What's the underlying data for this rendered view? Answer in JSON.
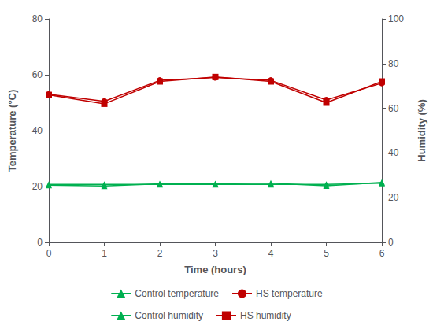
{
  "chart_data": {
    "type": "line",
    "xlabel": "Time (hours)",
    "ylabel": "Temperature (°C)",
    "y2label": "Humidity (%)",
    "x": [
      0,
      1,
      2,
      3,
      4,
      5,
      6
    ],
    "xlim": [
      0,
      6
    ],
    "xticks": [
      0,
      1,
      2,
      3,
      4,
      5,
      6
    ],
    "ylim": [
      0,
      80
    ],
    "yticks": [
      0,
      20,
      40,
      60,
      80
    ],
    "y2lim": [
      0,
      100
    ],
    "y2ticks": [
      0,
      20,
      40,
      60,
      80,
      100
    ],
    "grid": false,
    "legend": "bottom",
    "series": [
      {
        "name": "Control temperature",
        "color": "#00b050",
        "marker": "triangle",
        "line_style": "solid",
        "values": [
          20.5,
          20.2,
          21.0,
          21.0,
          21.2,
          20.3,
          21.5
        ]
      },
      {
        "name": "HS temperature",
        "color": "#c00000",
        "marker": "circle",
        "line_style": "solid",
        "values": [
          53.0,
          50.5,
          58.0,
          59.0,
          58.0,
          51.0,
          57.0
        ]
      },
      {
        "name": "Control humidity",
        "color": "#00b050",
        "marker": "triangle",
        "line_style": "solid",
        "axis": "y2",
        "values": [
          26.0,
          26.0,
          26.0,
          26.0,
          26.0,
          26.0,
          26.5
        ]
      },
      {
        "name": "HS humidity",
        "color": "#c00000",
        "marker": "square",
        "line_style": "solid",
        "axis": "y2",
        "values": [
          66.0,
          62.0,
          72.0,
          74.0,
          72.0,
          62.5,
          72.0
        ]
      }
    ]
  }
}
